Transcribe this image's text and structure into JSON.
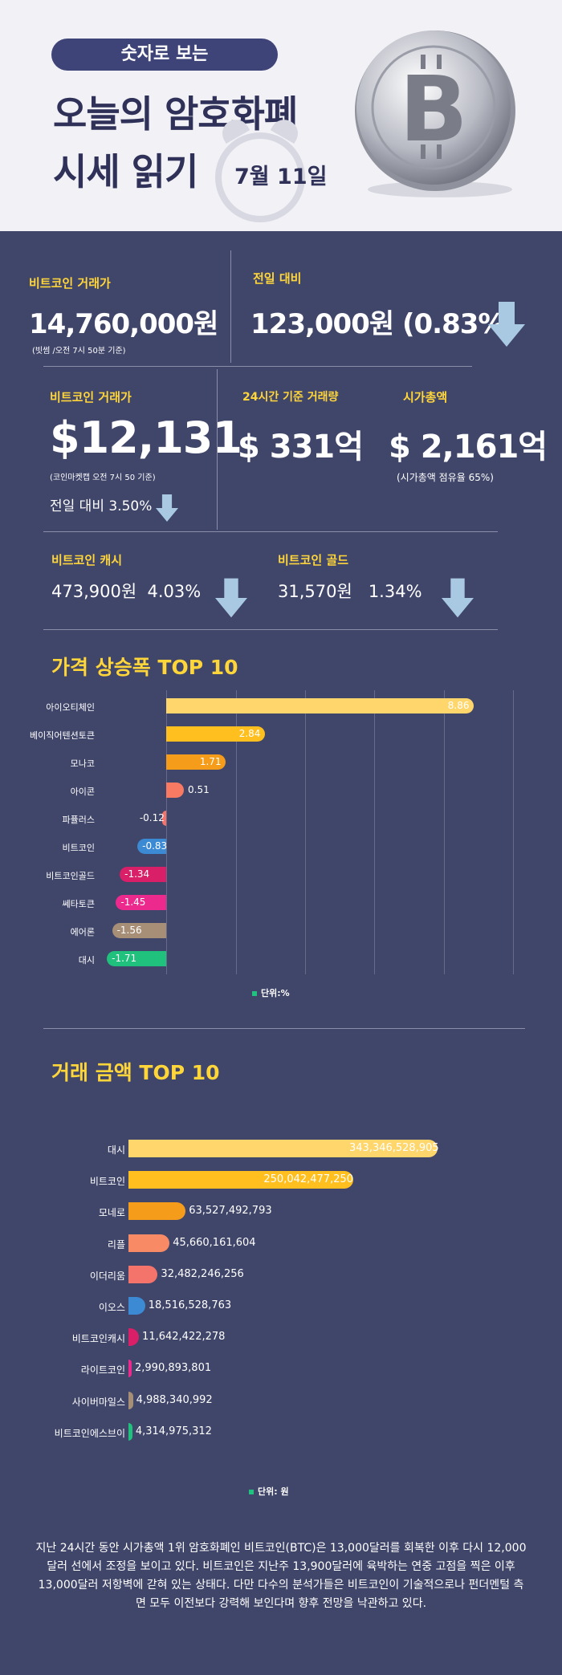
{
  "header": {
    "pill_text": "숫자로 보는",
    "title_line1": "오늘의 암호화폐",
    "title_line2": "시세 읽기",
    "date": "7월 11일"
  },
  "krw": {
    "label": "비트코인 거래가",
    "price": "14,760,000원",
    "note": "(빗썸 /오전 7시 50분 기준)",
    "change_label": "전일 대비",
    "change_value": "123,000원 (0.83%)"
  },
  "usd": {
    "label": "비트코인 거래가",
    "price": "$12,131",
    "note": "(코인마켓캡 오전 7시 50 기준)",
    "change": "전일 대비 3.50%",
    "volume_label": "24시간 기준 거래량",
    "volume_value": "$ 331억",
    "marketcap_label": "시가총액",
    "marketcap_value": "$ 2,161억",
    "share_note": "(시가총액 점유율 65%)"
  },
  "forks": {
    "cash_label": "비트코인 캐시",
    "cash_value": "473,900원  4.03%",
    "gold_label": "비트코인 골드",
    "gold_value": "31,570원   1.34%"
  },
  "chart1_title": "가격 상승폭 TOP 10",
  "chart2_title": "거래 금액 TOP 10",
  "colors": {
    "accent": "#ffd63a",
    "arrow": "#a9c9e3",
    "background": "#40456a",
    "legend_dot": "#21c17f"
  },
  "chart_data": [
    {
      "type": "bar",
      "orientation": "horizontal",
      "title": "가격 상승폭 TOP 10",
      "unit": "단위:%",
      "categories": [
        "아이오티체인",
        "베이직어텐션토큰",
        "모나코",
        "아이콘",
        "파퓰러스",
        "비트코인",
        "비트코인골드",
        "쎄타토큰",
        "에어론",
        "대시"
      ],
      "values": [
        8.86,
        2.84,
        1.71,
        0.51,
        -0.12,
        -0.83,
        -1.34,
        -1.45,
        -1.56,
        -1.71
      ],
      "value_labels": [
        "8.86",
        "2.84",
        "1.71",
        "0.51",
        "-0.12",
        "-0.83",
        "-1.34",
        "-1.45",
        "-1.56",
        "-1.71"
      ],
      "colors": [
        "#ffd66b",
        "#ffbf1f",
        "#f59c1a",
        "#f97a62",
        "#f4736b",
        "#3b8ad3",
        "#d81f67",
        "#ec2a8e",
        "#a78f77",
        "#20c07d"
      ],
      "xlim": [
        -2,
        10
      ],
      "grid": true
    },
    {
      "type": "bar",
      "orientation": "horizontal",
      "title": "거래 금액 TOP 10",
      "unit": "단위: 원",
      "categories": [
        "대시",
        "비트코인",
        "모네로",
        "리플",
        "이더리움",
        "이오스",
        "비트코인캐시",
        "라이트코인",
        "사이버마일스",
        "비트코인에스브이"
      ],
      "values": [
        343346528905,
        250042477250,
        63527492793,
        45660161604,
        32482246256,
        18516528763,
        11642422278,
        2990893801,
        4988340992,
        4314975312
      ],
      "value_labels": [
        "343,346,528,905",
        "250,042,477,250",
        "63,527,492,793",
        "45,660,161,604",
        "32,482,246,256",
        "18,516,528,763",
        "11,642,422,278",
        "2,990,893,801",
        "4,988,340,992",
        "4,314,975,312"
      ],
      "colors": [
        "#ffd66b",
        "#ffbf1f",
        "#f59c1a",
        "#f98a66",
        "#f4736b",
        "#3b8ad3",
        "#d81f67",
        "#ec2a8e",
        "#a78f77",
        "#20c07d"
      ],
      "grid": false
    }
  ],
  "footer": {
    "text": "지난 24시간 동안 시가총액 1위 암호화폐인 비트코인(BTC)은 13,000달러를 회복한 이후 다시 12,000달러 선에서 조정을 보이고 있다. 비트코인은 지난주 13,900달러에 육박하는 연중 고점을 찍은 이후 13,000달러 저항벽에 갇혀 있는 상태다. 다만 다수의 분석가들은 비트코인이 기술적으로나 펀더멘털 측면 모두 이전보다 강력해 보인다며 향후 전망을 낙관하고 있다."
  }
}
